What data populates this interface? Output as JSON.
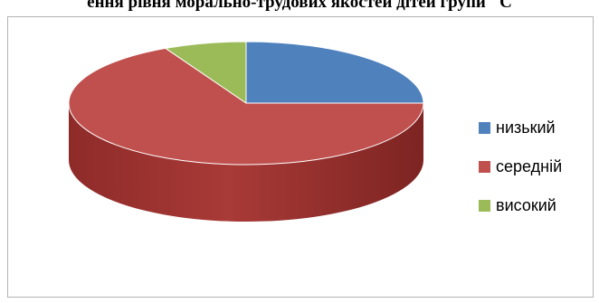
{
  "title": "ення рівня морально-трудових якостей дітей групи \"С",
  "chart_data": {
    "type": "pie",
    "title": "ення рівня морально-трудових якостей дітей групи \"С",
    "series": [
      {
        "label": "низький",
        "value": 25,
        "color": "#4f81bd"
      },
      {
        "label": "середній",
        "value": 67.5,
        "color": "#c0504d"
      },
      {
        "label": "високий",
        "value": 7.5,
        "color": "#9bbb59"
      }
    ],
    "legend_position": "right",
    "style": "3d"
  }
}
